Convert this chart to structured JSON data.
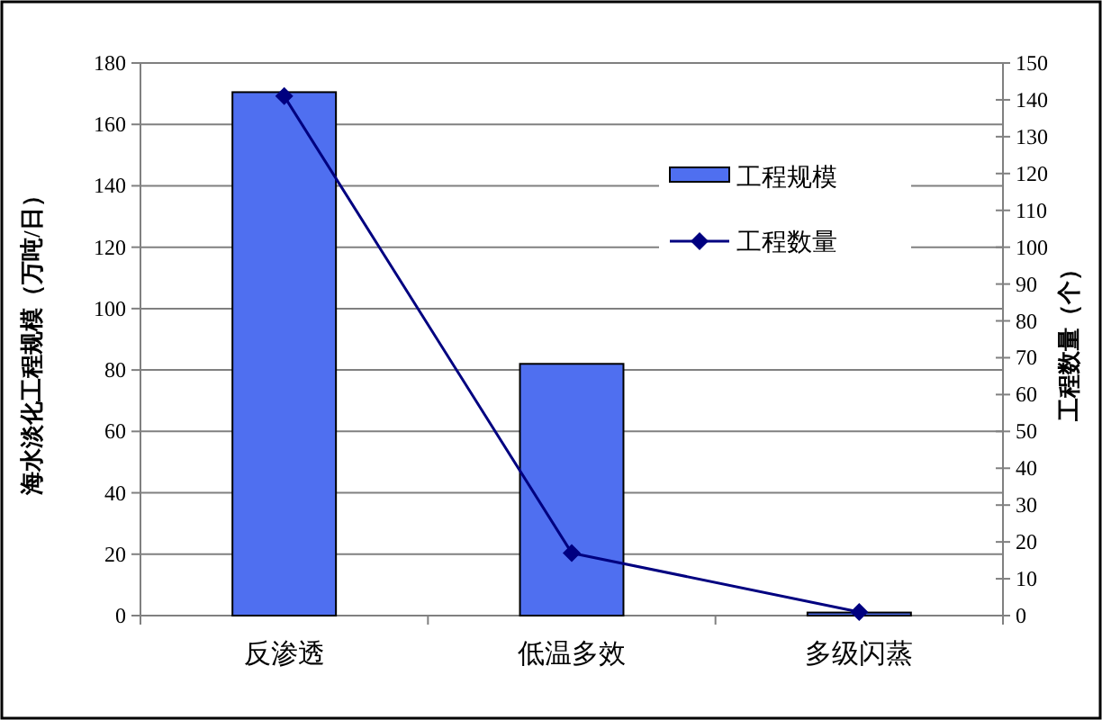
{
  "chart_data": {
    "type": "bar",
    "ylabel": "海水淡化工程规模（万吨/日）",
    "y2label": "工程数量（个）",
    "categories": [
      "反渗透",
      "低温多效",
      "多级闪蒸"
    ],
    "series": [
      {
        "name": "工程规模",
        "color": "#4f6ff0",
        "values": [
          170.5,
          82,
          1
        ]
      },
      {
        "name": "工程数量",
        "type": "line",
        "axis": "y2",
        "color": "#000080",
        "marker": "diamond",
        "values": [
          141,
          17,
          1
        ]
      }
    ],
    "ylim": [
      0,
      180
    ],
    "yticks": [
      0,
      20,
      40,
      60,
      80,
      100,
      120,
      140,
      160,
      180
    ],
    "y2lim": [
      0,
      150
    ],
    "y2ticks": [
      0,
      10,
      20,
      30,
      40,
      50,
      60,
      70,
      80,
      90,
      100,
      110,
      120,
      130,
      140,
      150
    ],
    "grid": "y",
    "legend": "top right"
  }
}
